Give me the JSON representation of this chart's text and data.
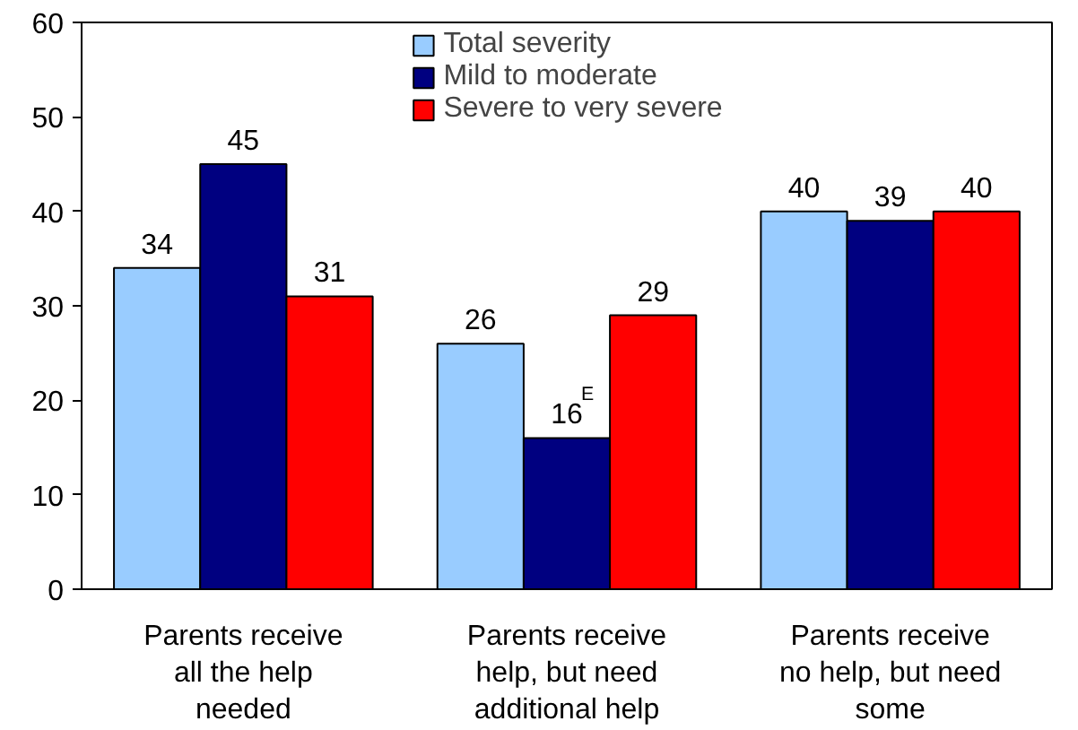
{
  "chart_data": {
    "type": "bar",
    "categories": [
      "Parents receive all the help needed",
      "Parents receive help, but need additional help",
      "Parents receive no help, but need some"
    ],
    "series": [
      {
        "name": "Total severity",
        "color": "#99ccff",
        "values": [
          34,
          26,
          40
        ],
        "value_labels": [
          "34",
          "26",
          "40"
        ]
      },
      {
        "name": "Mild to moderate",
        "color": "#000080",
        "values": [
          45,
          16,
          39
        ],
        "value_labels": [
          "45",
          "16$^{E}$",
          "39"
        ]
      },
      {
        "name": "Severe to very severe",
        "color": "#ff0000",
        "values": [
          31,
          29,
          40
        ],
        "value_labels": [
          "31",
          "29",
          "40"
        ]
      }
    ],
    "ylim": [
      0,
      60
    ],
    "yticks": [
      0,
      10,
      20,
      30,
      40,
      50,
      60
    ],
    "grid": false,
    "legend": "top"
  }
}
